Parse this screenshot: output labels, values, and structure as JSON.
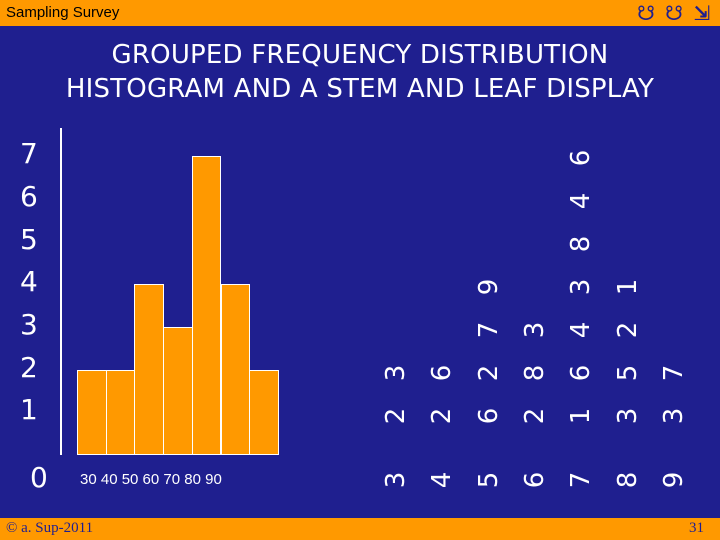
{
  "header": {
    "app_title": "Sampling Survey",
    "nav_icons": [
      "back-icon",
      "forward-icon",
      "home-icon"
    ],
    "nav_glyphs": [
      "☋",
      "☋",
      "⇲"
    ]
  },
  "slide": {
    "title_line1": "GROUPED FREQUENCY DISTRIBUTION",
    "title_line2": "HISTOGRAM AND A STEM AND LEAF DISPLAY"
  },
  "histogram": {
    "y_ticks": [
      "7",
      "6",
      "5",
      "4",
      "3",
      "2",
      "1"
    ],
    "y_zero": "0",
    "x_ticks": "30 40 50 60 70 80 90",
    "chart_data": {
      "type": "bar",
      "values": [
        2,
        2,
        4,
        3,
        7,
        4,
        2
      ],
      "ylim": [
        0,
        7
      ]
    }
  },
  "stem_leaf": {
    "stems": [
      "3",
      "4",
      "5",
      "6",
      "7",
      "8",
      "9"
    ],
    "leaves": [
      [
        "2",
        "3"
      ],
      [
        "2",
        "6"
      ],
      [
        "6",
        "2",
        "7",
        "9"
      ],
      [
        "2",
        "8",
        "3"
      ],
      [
        "1",
        "6",
        "4",
        "3",
        "8",
        "4",
        "6"
      ],
      [
        "3",
        "5",
        "2",
        "1"
      ],
      [
        "3",
        "7"
      ]
    ]
  },
  "footer": {
    "copyright": "© a. Sup-2011",
    "page_number": "31"
  },
  "colors": {
    "background": "#1f1f8f",
    "accent": "#ff9900",
    "text": "#ffffff"
  }
}
